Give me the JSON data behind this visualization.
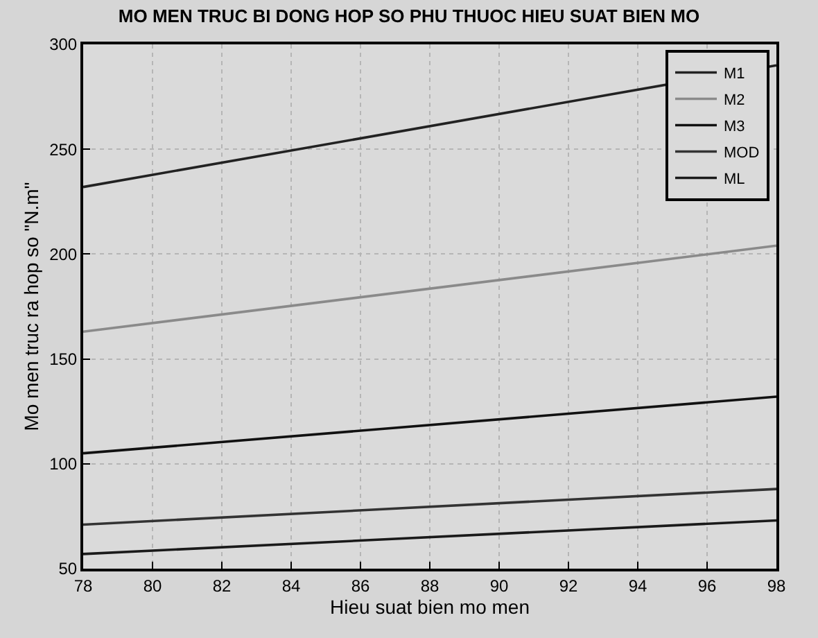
{
  "chart_data": {
    "type": "line",
    "title": "MO MEN TRUC BI DONG HOP SO PHU THUOC HIEU SUAT BIEN MO",
    "xlabel": "Hieu suat bien mo men",
    "ylabel": "Mo men truc ra hop so \"N.m\"",
    "x": [
      78,
      98
    ],
    "series": [
      {
        "name": "M1",
        "color": "#222222",
        "values": [
          232,
          290
        ]
      },
      {
        "name": "M2",
        "color": "#8a8a8a",
        "values": [
          163,
          204
        ]
      },
      {
        "name": "M3",
        "color": "#111111",
        "values": [
          105,
          132
        ]
      },
      {
        "name": "MOD",
        "color": "#333333",
        "values": [
          71,
          88
        ]
      },
      {
        "name": "ML",
        "color": "#1a1a1a",
        "values": [
          57,
          73
        ]
      }
    ],
    "xlim": [
      78,
      98
    ],
    "xticks": [
      78,
      80,
      82,
      84,
      86,
      88,
      90,
      92,
      94,
      96,
      98
    ],
    "ylim": [
      50,
      300
    ],
    "yticks": [
      50,
      100,
      150,
      200,
      250,
      300
    ],
    "grid": true,
    "legend": "top right",
    "marker": "none",
    "line_style": "solid"
  }
}
